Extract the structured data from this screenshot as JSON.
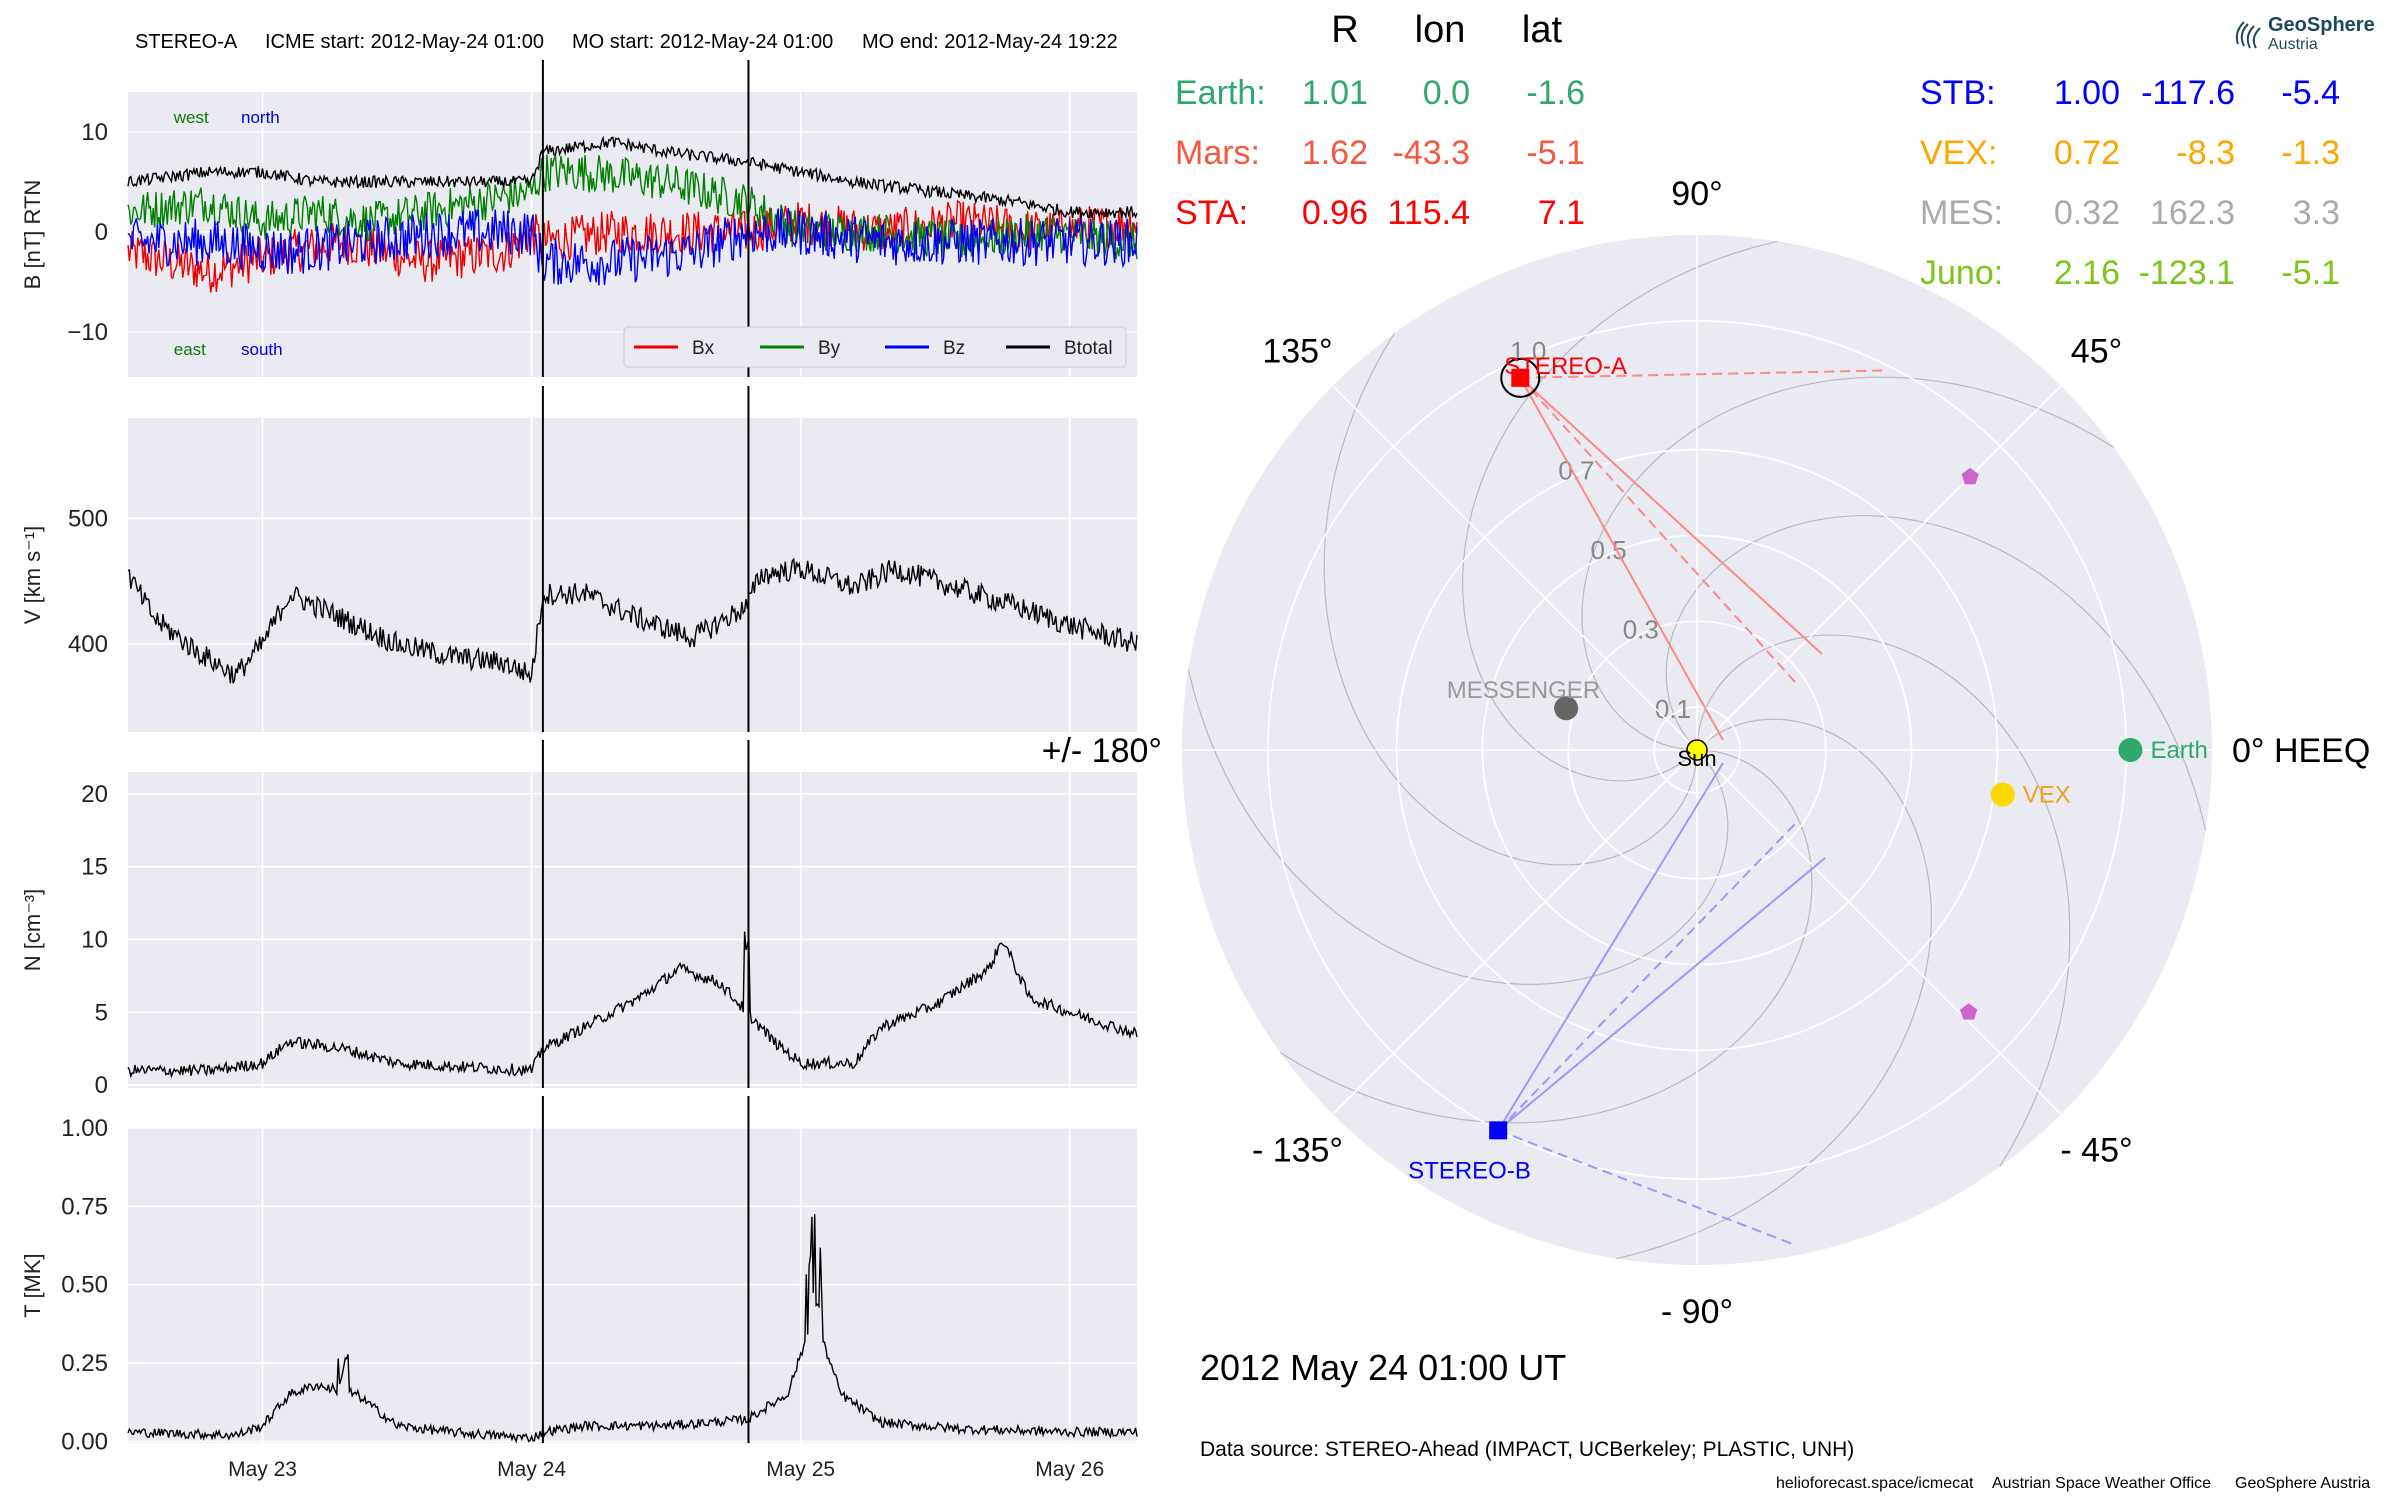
{
  "logo": {
    "name": "GeoSphere",
    "sub": "Austria"
  },
  "chart_data": {
    "type": "multi-panel line time series + polar position plot",
    "header": {
      "spacecraft": "STEREO-A",
      "icme_start": "ICME start: 2012-May-24 01:00",
      "mo_start": "MO start: 2012-May-24 01:00",
      "mo_end": "MO end: 2012-May-24 19:22"
    },
    "time_axis": {
      "range_days": [
        22.5,
        26.25
      ],
      "ticks": [
        {
          "day": 23,
          "label": "May 23"
        },
        {
          "day": 24,
          "label": "May 24"
        },
        {
          "day": 25,
          "label": "May 25"
        },
        {
          "day": 26,
          "label": "May 26"
        }
      ],
      "event_lines_days": [
        24.042,
        24.806
      ]
    },
    "panels": [
      {
        "id": "B",
        "ylabel": "B [nT] RTN",
        "ylim": [
          -14.5,
          14
        ],
        "ticks": [
          {
            "v": 10,
            "label": "10"
          },
          {
            "v": 0,
            "label": "0"
          },
          {
            "v": -10,
            "label": "−10"
          }
        ],
        "annotations": [
          {
            "text": "west",
            "day": 22.67,
            "v": 11.5,
            "color": "#0a7a0a"
          },
          {
            "text": "north",
            "day": 22.92,
            "v": 11.5,
            "color": "#0000dd"
          },
          {
            "text": "east",
            "day": 22.67,
            "v": -11.7,
            "color": "#0a7a0a"
          },
          {
            "text": "south",
            "day": 22.92,
            "v": -11.7,
            "color": "#0000dd"
          }
        ],
        "legend": [
          "Bx",
          "By",
          "Bz",
          "Btotal"
        ],
        "series": [
          {
            "name": "Bx",
            "color": "#ee0000",
            "noise": 2.2,
            "days": [
              22.5,
              22.8,
              23.1,
              23.3,
              23.6,
              23.9,
              24.0,
              24.042,
              24.3,
              24.6,
              24.8,
              25.0,
              25.3,
              25.6,
              25.9,
              26.25
            ],
            "values": [
              -2,
              -4,
              -2,
              -1,
              -3,
              -2,
              0,
              -1,
              0,
              0,
              0,
              1,
              0,
              1,
              0,
              1
            ]
          },
          {
            "name": "By",
            "color": "#008000",
            "noise": 2.0,
            "days": [
              22.5,
              22.8,
              23.0,
              23.2,
              23.4,
              23.6,
              23.8,
              24.0,
              24.042,
              24.2,
              24.5,
              24.8,
              25.0,
              25.3,
              25.6,
              25.9,
              26.25
            ],
            "values": [
              2,
              3,
              1,
              2,
              1,
              2,
              3,
              4,
              6,
              6,
              5,
              3,
              0,
              0,
              -1,
              0,
              -1
            ]
          },
          {
            "name": "Bz",
            "color": "#0000ee",
            "noise": 2.4,
            "days": [
              22.5,
              22.8,
              23.1,
              23.4,
              23.7,
              24.0,
              24.042,
              24.3,
              24.6,
              24.8,
              25.0,
              25.3,
              25.6,
              25.9,
              26.25
            ],
            "values": [
              -1,
              -1,
              -2,
              -1,
              0,
              0,
              -3,
              -3,
              -2,
              0,
              0,
              -1,
              -1,
              -1,
              -1
            ]
          },
          {
            "name": "Btotal",
            "color": "#000000",
            "noise": 0.6,
            "days": [
              22.5,
              22.8,
              23.0,
              23.2,
              23.5,
              23.8,
              24.0,
              24.042,
              24.3,
              24.5,
              24.8,
              25.0,
              25.2,
              25.5,
              25.8,
              26.0,
              26.25
            ],
            "values": [
              5,
              6,
              6,
              5,
              5,
              5,
              5,
              8,
              9,
              8,
              7,
              6,
              5,
              4,
              3,
              2,
              2
            ]
          }
        ]
      },
      {
        "id": "V",
        "ylabel": "V [km s⁻¹]",
        "ylim": [
          330,
          580
        ],
        "ticks": [
          {
            "v": 500,
            "label": "500"
          },
          {
            "v": 400,
            "label": "400"
          }
        ],
        "series": [
          {
            "name": "V",
            "color": "#000000",
            "noise": 9,
            "days": [
              22.5,
              22.6,
              22.75,
              22.9,
              23.0,
              23.1,
              23.3,
              23.5,
              23.7,
              23.9,
              24.0,
              24.042,
              24.2,
              24.4,
              24.6,
              24.8,
              24.85,
              25.0,
              25.2,
              25.35,
              25.5,
              25.8,
              26.0,
              26.25
            ],
            "values": [
              455,
              420,
              395,
              375,
              400,
              440,
              420,
              400,
              390,
              385,
              375,
              440,
              440,
              420,
              405,
              430,
              455,
              460,
              445,
              460,
              450,
              430,
              415,
              400
            ]
          }
        ]
      },
      {
        "id": "N",
        "ylabel": "N [cm⁻³]",
        "ylim": [
          -0.2,
          21.5
        ],
        "ticks": [
          {
            "v": 20,
            "label": "20"
          },
          {
            "v": 15,
            "label": "15"
          },
          {
            "v": 10,
            "label": "10"
          },
          {
            "v": 5,
            "label": "5"
          },
          {
            "v": 0,
            "label": "0"
          }
        ],
        "series": [
          {
            "name": "N",
            "color": "#000000",
            "noise": 0.4,
            "days": [
              22.5,
              22.8,
              23.0,
              23.1,
              23.3,
              23.5,
              23.8,
              24.0,
              24.042,
              24.2,
              24.4,
              24.55,
              24.7,
              24.8,
              24.9,
              25.0,
              25.2,
              25.3,
              25.5,
              25.7,
              25.75,
              25.85,
              26.0,
              26.25
            ],
            "values": [
              1,
              1,
              1.5,
              3,
              2.5,
              1.5,
              1.2,
              1,
              2.5,
              4,
              6,
              8,
              7,
              5,
              3,
              1.5,
              1.5,
              4,
              5.5,
              8,
              10,
              6,
              5,
              3.5
            ]
          }
        ]
      },
      {
        "id": "T",
        "ylabel": "T [MK]",
        "ylim": [
          -0.005,
          1.0
        ],
        "ticks": [
          {
            "v": 1.0,
            "label": "1.00"
          },
          {
            "v": 0.75,
            "label": "0.75"
          },
          {
            "v": 0.5,
            "label": "0.50"
          },
          {
            "v": 0.25,
            "label": "0.25"
          },
          {
            "v": 0.0,
            "label": "0.00"
          }
        ],
        "series": [
          {
            "name": "T",
            "color": "#000000",
            "noise": 0.015,
            "days": [
              22.5,
              22.9,
              23.0,
              23.1,
              23.2,
              23.35,
              23.5,
              23.7,
              24.0,
              24.042,
              24.2,
              24.5,
              24.8,
              24.95,
              25.05,
              25.15,
              25.3,
              25.6,
              26.0,
              26.25
            ],
            "values": [
              0.03,
              0.02,
              0.05,
              0.15,
              0.18,
              0.15,
              0.05,
              0.03,
              0.01,
              0.03,
              0.05,
              0.05,
              0.07,
              0.15,
              0.4,
              0.15,
              0.06,
              0.04,
              0.03,
              0.03
            ]
          }
        ]
      }
    ],
    "polar": {
      "theta_labels": [
        {
          "deg": 90,
          "label": "90°"
        },
        {
          "deg": 45,
          "label": "45°"
        },
        {
          "deg": 0,
          "label": "0° HEEQ"
        },
        {
          "deg": -45,
          "label": "- 45°"
        },
        {
          "deg": -90,
          "label": "- 90°"
        },
        {
          "deg": -135,
          "label": "- 135°"
        },
        {
          "deg": 180,
          "label": "+/- 180°"
        },
        {
          "deg": 135,
          "label": "135°"
        }
      ],
      "r_labels": [
        {
          "r": 0.1,
          "label": "0.1"
        },
        {
          "r": 0.3,
          "label": "0.3"
        },
        {
          "r": 0.5,
          "label": "0.5"
        },
        {
          "r": 0.7,
          "label": "0.7"
        },
        {
          "r": 1.0,
          "label": "1.0"
        }
      ],
      "sun": {
        "label": "Sun",
        "color": "#ffff00"
      },
      "bodies": [
        {
          "name": "Earth",
          "r": 1.01,
          "lon": 0.0,
          "color": "#2fa86b",
          "label": "Earth",
          "marker": "circle"
        },
        {
          "name": "VEX",
          "r": 0.72,
          "lon": -8.3,
          "color": "#ffd700",
          "label": "VEX",
          "marker": "circle"
        },
        {
          "name": "MES",
          "r": 0.32,
          "lon": 162.3,
          "color": "#666666",
          "label": "MESSENGER",
          "marker": "circle"
        },
        {
          "name": "STA",
          "r": 0.96,
          "lon": 115.4,
          "color": "#ff0000",
          "label": "STEREO-A",
          "marker": "square"
        },
        {
          "name": "STB",
          "r": 1.0,
          "lon": -117.6,
          "color": "#0000ff",
          "label": "STEREO-B",
          "marker": "square"
        }
      ],
      "pentagons": [
        {
          "r": 0.9,
          "lon": 45,
          "color": "#cc66cc"
        },
        {
          "r": 0.88,
          "lon": -44,
          "color": "#cc66cc"
        }
      ],
      "date_label": "2012 May 24  01:00 UT"
    },
    "position_table": {
      "headers": [
        "R",
        "lon",
        "lat"
      ],
      "left": [
        {
          "name": "Earth:",
          "r": "1.01",
          "lon": "0.0",
          "lat": "-1.6",
          "color": "#2fa86b"
        },
        {
          "name": "Mars:",
          "r": "1.62",
          "lon": "-43.3",
          "lat": "-5.1",
          "color": "#f4593e"
        },
        {
          "name": "STA:",
          "r": "0.96",
          "lon": "115.4",
          "lat": "7.1",
          "color": "#ff0000"
        }
      ],
      "right": [
        {
          "name": "STB:",
          "r": "1.00",
          "lon": "-117.6",
          "lat": "-5.4",
          "color": "#0000ff"
        },
        {
          "name": "VEX:",
          "r": "0.72",
          "lon": "-8.3",
          "lat": "-1.3",
          "color": "#ffa500"
        },
        {
          "name": "MES:",
          "r": "0.32",
          "lon": "162.3",
          "lat": "3.3",
          "color": "#aaaaaa"
        },
        {
          "name": "Juno:",
          "r": "2.16",
          "lon": "-123.1",
          "lat": "-5.1",
          "color": "#7cc61c"
        }
      ]
    },
    "data_source": "Data source: STEREO-Ahead (IMPACT, UCBerkeley; PLASTIC, UNH)",
    "footer": [
      "helioforecast.space/icmecat",
      "Austrian Space Weather Office",
      "GeoSphere Austria"
    ]
  }
}
